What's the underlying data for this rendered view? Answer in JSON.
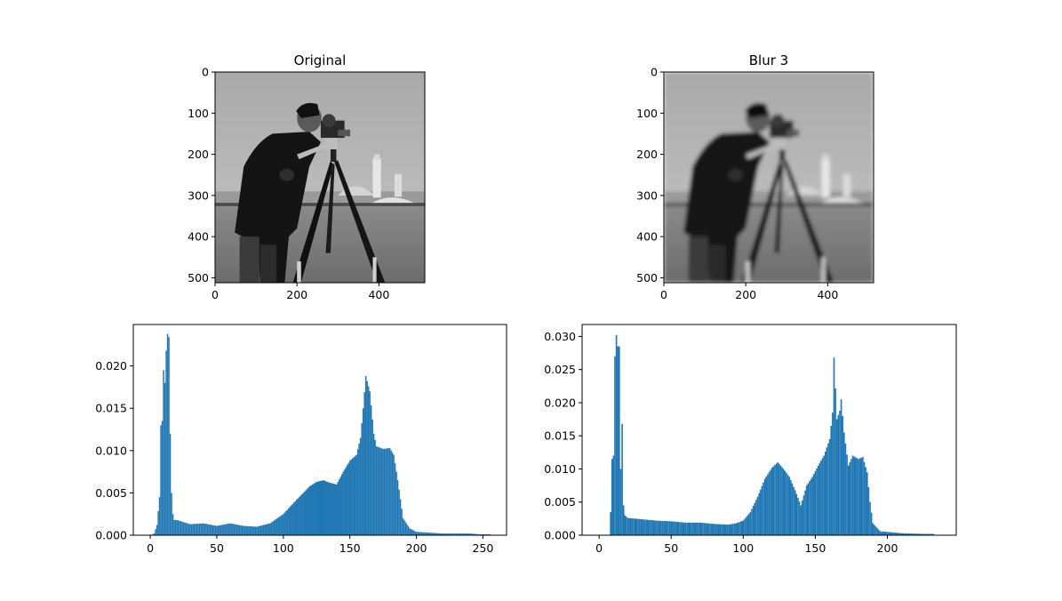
{
  "figure": {
    "background": "#ffffff",
    "bar_color": "#1f77b4"
  },
  "chart_data": [
    {
      "type": "image",
      "title": "Original",
      "image": "cameraman photograph (grayscale): man in dark coat with tripod camera, field and buildings in background",
      "xlim": [
        0,
        512
      ],
      "ylim": [
        512,
        0
      ],
      "xticks": [
        "0",
        "200",
        "400"
      ],
      "yticks": [
        "0",
        "100",
        "200",
        "300",
        "400",
        "500"
      ]
    },
    {
      "type": "image",
      "title": "Blur 3",
      "image": "same cameraman photograph, blurred",
      "xlim": [
        0,
        512
      ],
      "ylim": [
        512,
        0
      ],
      "xticks": [
        "0",
        "200",
        "400"
      ],
      "yticks": [
        "0",
        "100",
        "200",
        "300",
        "400",
        "500"
      ]
    },
    {
      "type": "bar",
      "title": "",
      "xlim": [
        -12.75,
        267.75
      ],
      "ylim": [
        0,
        0.0249
      ],
      "xticks": [
        "0",
        "50",
        "100",
        "150",
        "200",
        "250"
      ],
      "yticks": [
        "0.000",
        "0.005",
        "0.010",
        "0.015",
        "0.020"
      ],
      "bin_width": 1,
      "series": [
        {
          "color": "#1f77b4",
          "points": [
            [
              0,
              0
            ],
            [
              3,
              0.0002
            ],
            [
              5,
              0.0012
            ],
            [
              7,
              0.0045
            ],
            [
              8,
              0.013
            ],
            [
              9,
              0.0135
            ],
            [
              10,
              0.0195
            ],
            [
              11,
              0.018
            ],
            [
              12,
              0.0218
            ],
            [
              13,
              0.0238
            ],
            [
              14,
              0.0234
            ],
            [
              15,
              0.012
            ],
            [
              16,
              0.005
            ],
            [
              17,
              0.0025
            ],
            [
              18,
              0.0018
            ],
            [
              20,
              0.0018
            ],
            [
              30,
              0.0013
            ],
            [
              40,
              0.0014
            ],
            [
              50,
              0.0011
            ],
            [
              60,
              0.0014
            ],
            [
              70,
              0.0011
            ],
            [
              80,
              0.001
            ],
            [
              90,
              0.0014
            ],
            [
              100,
              0.0025
            ],
            [
              110,
              0.0042
            ],
            [
              120,
              0.0058
            ],
            [
              125,
              0.0063
            ],
            [
              130,
              0.0065
            ],
            [
              135,
              0.0062
            ],
            [
              140,
              0.006
            ],
            [
              145,
              0.0075
            ],
            [
              150,
              0.0088
            ],
            [
              155,
              0.0095
            ],
            [
              158,
              0.0115
            ],
            [
              160,
              0.015
            ],
            [
              162,
              0.0188
            ],
            [
              165,
              0.017
            ],
            [
              168,
              0.012
            ],
            [
              170,
              0.0105
            ],
            [
              175,
              0.0102
            ],
            [
              180,
              0.0103
            ],
            [
              183,
              0.0095
            ],
            [
              186,
              0.0065
            ],
            [
              190,
              0.002
            ],
            [
              195,
              0.0008
            ],
            [
              200,
              0.0004
            ],
            [
              220,
              0.0002
            ],
            [
              240,
              0.0002
            ],
            [
              248,
              0.0001
            ],
            [
              255,
              0.0001
            ]
          ]
        }
      ]
    },
    {
      "type": "bar",
      "title": "",
      "xlim": [
        -11.8,
        247.8
      ],
      "ylim": [
        0,
        0.0318
      ],
      "xticks": [
        "0",
        "50",
        "100",
        "150",
        "200"
      ],
      "yticks": [
        "0.000",
        "0.005",
        "0.010",
        "0.015",
        "0.020",
        "0.025",
        "0.030"
      ],
      "bin_width": 1,
      "series": [
        {
          "color": "#1f77b4",
          "points": [
            [
              7,
              0
            ],
            [
              8,
              0.0035
            ],
            [
              9,
              0.0115
            ],
            [
              10,
              0.012
            ],
            [
              11,
              0.027
            ],
            [
              12,
              0.0302
            ],
            [
              13,
              0.0285
            ],
            [
              14,
              0.0285
            ],
            [
              15,
              0.01
            ],
            [
              16,
              0.0168
            ],
            [
              17,
              0.0045
            ],
            [
              18,
              0.003
            ],
            [
              20,
              0.0026
            ],
            [
              30,
              0.0024
            ],
            [
              40,
              0.0022
            ],
            [
              50,
              0.0021
            ],
            [
              60,
              0.0019
            ],
            [
              70,
              0.0019
            ],
            [
              80,
              0.0017
            ],
            [
              90,
              0.0016
            ],
            [
              95,
              0.0018
            ],
            [
              100,
              0.0022
            ],
            [
              105,
              0.0035
            ],
            [
              110,
              0.0058
            ],
            [
              115,
              0.0085
            ],
            [
              120,
              0.0102
            ],
            [
              124,
              0.011
            ],
            [
              128,
              0.01
            ],
            [
              132,
              0.0088
            ],
            [
              136,
              0.0068
            ],
            [
              140,
              0.0045
            ],
            [
              144,
              0.0075
            ],
            [
              148,
              0.0088
            ],
            [
              152,
              0.0105
            ],
            [
              156,
              0.012
            ],
            [
              160,
              0.0145
            ],
            [
              162,
              0.0185
            ],
            [
              163,
              0.0268
            ],
            [
              165,
              0.0175
            ],
            [
              167,
              0.0188
            ],
            [
              168,
              0.0205
            ],
            [
              170,
              0.0155
            ],
            [
              173,
              0.0105
            ],
            [
              176,
              0.012
            ],
            [
              180,
              0.0115
            ],
            [
              183,
              0.0118
            ],
            [
              186,
              0.0095
            ],
            [
              188,
              0.005
            ],
            [
              190,
              0.0018
            ],
            [
              195,
              0.0006
            ],
            [
              210,
              0.0003
            ],
            [
              225,
              0.0002
            ],
            [
              232,
              0.0002
            ],
            [
              233,
              0
            ]
          ]
        }
      ]
    }
  ]
}
